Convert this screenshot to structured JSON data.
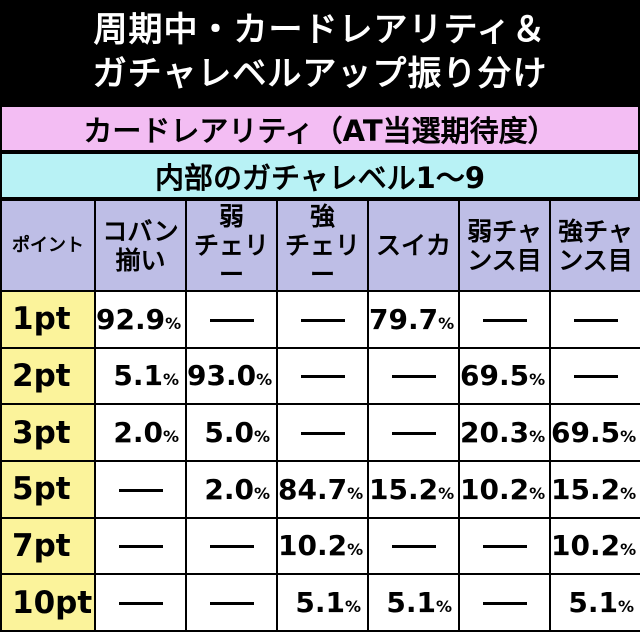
{
  "title_lines": [
    "周期中・カードレアリティ＆",
    "ガチャレベルアップ振り分け"
  ],
  "section_band": "カードレアリティ（AT当選期待度）",
  "sub_band": "内部のガチャレベル1〜9",
  "table": {
    "headers": [
      {
        "lines": [
          "ポイント"
        ]
      },
      {
        "lines": [
          "コバン",
          "揃い"
        ]
      },
      {
        "lines": [
          "弱",
          "チェリー"
        ]
      },
      {
        "lines": [
          "強",
          "チェリー"
        ]
      },
      {
        "lines": [
          "スイカ"
        ]
      },
      {
        "lines": [
          "弱チャ",
          "ンス目"
        ]
      },
      {
        "lines": [
          "強チャ",
          "ンス目"
        ]
      }
    ],
    "rows": [
      {
        "label": "1pt",
        "cells": [
          "92.9",
          "",
          "",
          "79.7",
          "",
          ""
        ]
      },
      {
        "label": "2pt",
        "cells": [
          "5.1",
          "93.0",
          "",
          "",
          "69.5",
          ""
        ]
      },
      {
        "label": "3pt",
        "cells": [
          "2.0",
          "5.0",
          "",
          "",
          "20.3",
          "69.5"
        ]
      },
      {
        "label": "5pt",
        "cells": [
          "",
          "2.0",
          "84.7",
          "15.2",
          "10.2",
          "15.2"
        ]
      },
      {
        "label": "7pt",
        "cells": [
          "",
          "",
          "10.2",
          "",
          "",
          "10.2"
        ]
      },
      {
        "label": "10pt",
        "cells": [
          "",
          "",
          "5.1",
          "5.1",
          "",
          "5.1"
        ]
      }
    ],
    "unit": "%"
  },
  "colors": {
    "background": "#000000",
    "section_band": "#f3bdf3",
    "sub_band": "#b8f2f5",
    "header_cell": "#bebee6",
    "row_label_cell": "#fbf39b",
    "value_cell": "#ffffff"
  }
}
